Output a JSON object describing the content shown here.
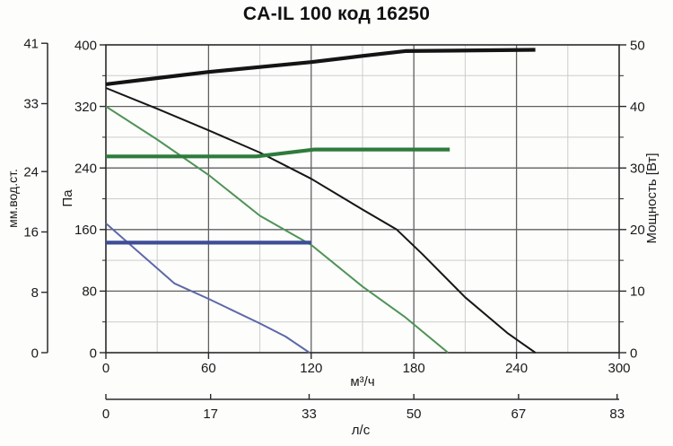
{
  "title": "CA-IL 100 код 16250",
  "colors": {
    "curve_black": "#161616",
    "curve_green_thin": "#4f9357",
    "curve_green_thick": "#2e7b3c",
    "curve_blue_thin": "#5c68a8",
    "curve_blue_thick": "#3d4d96",
    "grid_major": "#606060",
    "grid_minor": "#cbcecb",
    "frame": "#2a2a2a",
    "text": "#1a1a1a"
  },
  "chart_data": {
    "type": "line",
    "title": "CA-IL 100 код 16250",
    "x_axis": {
      "label": "м³/ч",
      "range": [
        0,
        300
      ],
      "ticks": [
        0,
        60,
        120,
        180,
        240,
        300
      ],
      "minor_step": 30
    },
    "x_axis_secondary": {
      "label": "л/с",
      "ticks": [
        0,
        17,
        33,
        50,
        67,
        83
      ],
      "m3h_per_ls": 3.6
    },
    "y_axis": {
      "label": "Па",
      "range": [
        0,
        400
      ],
      "ticks": [
        0,
        80,
        160,
        240,
        320,
        400
      ],
      "minor_step": 40
    },
    "y_axis_outer": {
      "label": "мм.вод.ст.",
      "ticks": [
        0,
        8,
        16,
        24,
        33,
        41
      ],
      "pa_per_unit": 9.8066
    },
    "y_axis_right": {
      "label": "Мощность [Вт]",
      "range": [
        0,
        50
      ],
      "ticks": [
        0,
        10,
        20,
        30,
        40,
        50
      ],
      "minor_step": 5
    },
    "grid": true,
    "legend": "none",
    "series": [
      {
        "name": "power-consumption",
        "yaxis": "right",
        "width": 4.2,
        "color": "#141414",
        "points": [
          [
            0,
            43.6
          ],
          [
            30,
            44.6
          ],
          [
            60,
            45.6
          ],
          [
            90,
            46.4
          ],
          [
            120,
            47.2
          ],
          [
            150,
            48.2
          ],
          [
            175,
            49.0
          ],
          [
            251,
            49.2
          ]
        ]
      },
      {
        "name": "pressure-speed-3",
        "yaxis": "left",
        "width": 2,
        "color": "#161616",
        "points": [
          [
            0,
            344
          ],
          [
            30,
            317
          ],
          [
            60,
            289
          ],
          [
            90,
            260
          ],
          [
            120,
            226
          ],
          [
            150,
            186
          ],
          [
            170,
            160
          ],
          [
            185,
            128
          ],
          [
            210,
            72
          ],
          [
            235,
            25
          ],
          [
            251,
            0
          ]
        ]
      },
      {
        "name": "pressure-speed-2",
        "yaxis": "left",
        "width": 2,
        "color": "#4f9357",
        "points": [
          [
            0,
            320
          ],
          [
            30,
            277
          ],
          [
            60,
            231
          ],
          [
            90,
            178
          ],
          [
            120,
            140
          ],
          [
            150,
            86
          ],
          [
            175,
            46
          ],
          [
            200,
            0
          ]
        ]
      },
      {
        "name": "max-pressure-speed-2",
        "yaxis": "left",
        "width": 4.2,
        "color": "#2e7b3c",
        "points": [
          [
            0,
            255
          ],
          [
            88,
            255
          ],
          [
            122,
            264
          ],
          [
            201,
            264
          ]
        ]
      },
      {
        "name": "pressure-speed-1",
        "yaxis": "left",
        "width": 2,
        "color": "#5c68a8",
        "points": [
          [
            0,
            168
          ],
          [
            40,
            90
          ],
          [
            60,
            70
          ],
          [
            90,
            38
          ],
          [
            105,
            21
          ],
          [
            119,
            0
          ]
        ]
      },
      {
        "name": "max-pressure-speed-1",
        "yaxis": "left",
        "width": 4.2,
        "color": "#3d4d96",
        "points": [
          [
            0,
            143
          ],
          [
            120,
            143
          ]
        ]
      }
    ]
  }
}
